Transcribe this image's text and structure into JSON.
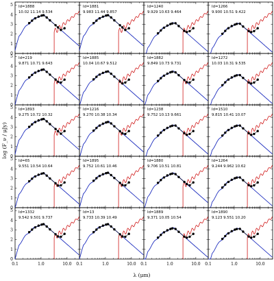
{
  "figure": {
    "xlabel": "λ (μm)",
    "ylabel": "log (F_ν / μJy)",
    "x_tick_labels": [
      "0.1",
      "1.0",
      "10.0"
    ],
    "y_tick_labels": [
      "0",
      "1",
      "2",
      "3",
      "4",
      "5"
    ]
  },
  "chart_data": {
    "type": "line",
    "xscale": "log",
    "xlim": [
      0.1,
      30
    ],
    "ylim": [
      0,
      5.3
    ],
    "grid": false,
    "panels": [
      {
        "id": "Id=1888",
        "values": "10.02 11.14 9.534",
        "peak": 3.95,
        "peak_x": 1.3
      },
      {
        "id": "Id=1881",
        "values": "9.983 11.44 9.857",
        "peak": 3.95,
        "peak_x": 1.3
      },
      {
        "id": "Id=1240",
        "values": "9.929 10.63 9.464",
        "peak": 3.15,
        "peak_x": 1.6
      },
      {
        "id": "Id=1266",
        "values": "9.900 10.51 9.422",
        "peak": 3.1,
        "peak_x": 1.6
      },
      {
        "id": "Id=219",
        "values": "9.871 10.71 9.643",
        "peak": 3.65,
        "peak_x": 1.3
      },
      {
        "id": "Id=1885",
        "values": "10.04 10.67 9.512",
        "peak": 3.45,
        "peak_x": 1.3
      },
      {
        "id": "Id=1882",
        "values": "9.849 10.73 9.731",
        "peak": 3.45,
        "peak_x": 1.5
      },
      {
        "id": "Id=1272",
        "values": "10.03 10.31 9.535",
        "peak": 3.1,
        "peak_x": 1.6
      },
      {
        "id": "Id=1893",
        "values": "9.275 10.72 10.32",
        "peak": 3.85,
        "peak_x": 1.3
      },
      {
        "id": "Id=1216",
        "values": "9.270 10.38 10.34",
        "peak": 3.55,
        "peak_x": 1.4
      },
      {
        "id": "Id=1238",
        "values": "9.752 10.13 9.661",
        "peak": 3.2,
        "peak_x": 1.6
      },
      {
        "id": "Id=1510",
        "values": "9.815 10.41 10.07",
        "peak": 3.2,
        "peak_x": 1.6
      },
      {
        "id": "Id=65",
        "values": "9.551 10.54 10.64",
        "peak": 3.55,
        "peak_x": 1.3
      },
      {
        "id": "Id=1895",
        "values": "9.752 10.61 10.46",
        "peak": 3.6,
        "peak_x": 1.3
      },
      {
        "id": "Id=1880",
        "values": "9.706 10.51 10.81",
        "peak": 3.55,
        "peak_x": 1.5
      },
      {
        "id": "Id=1264",
        "values": "9.244 9.962 10.62",
        "peak": 3.15,
        "peak_x": 1.6
      },
      {
        "id": "Id=1332",
        "values": "9.542 9.501 9.737",
        "peak": 3.6,
        "peak_x": 1.3
      },
      {
        "id": "Id=13",
        "values": "9.733 10.39 10.49",
        "peak": 3.6,
        "peak_x": 1.3
      },
      {
        "id": "Id=1889",
        "values": "9.371 10.05 10.54",
        "peak": 3.2,
        "peak_x": 1.5
      },
      {
        "id": "Id=1890",
        "values": "9.123 9.551 10.20",
        "peak": 3.15,
        "peak_x": 1.6
      }
    ]
  }
}
